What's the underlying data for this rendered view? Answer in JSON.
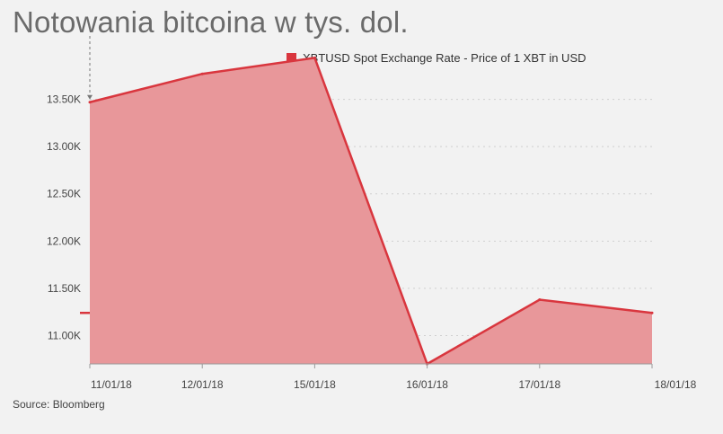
{
  "title": "Notowania bitcoina w tys. dol.",
  "source": "Source: Bloomberg",
  "colors": {
    "line": "#d9363e",
    "area": "#e8979a",
    "grid": "#cfcfcf",
    "background": "#f2f2f2"
  },
  "chart_data": {
    "type": "area",
    "title": "Notowania bitcoina w tys. dol.",
    "xlabel": "",
    "ylabel": "",
    "categories": [
      "11/01/18",
      "12/01/18",
      "15/01/18",
      "16/01/18",
      "17/01/18",
      "18/01/18"
    ],
    "series": [
      {
        "name": "XBTUSD Spot Exchange Rate - Price of 1 XBT in USD",
        "values": [
          13470,
          13770,
          13940,
          10700,
          11380,
          11240
        ]
      }
    ],
    "y_ticks": [
      "11.00K",
      "11.50K",
      "12.00K",
      "12.50K",
      "13.00K",
      "13.50K"
    ],
    "y_tick_values": [
      11000,
      11500,
      12000,
      12500,
      13000,
      13500
    ],
    "ylim": [
      10700,
      14200
    ],
    "grid": "horizontal dotted",
    "legend_position": "top-right"
  }
}
